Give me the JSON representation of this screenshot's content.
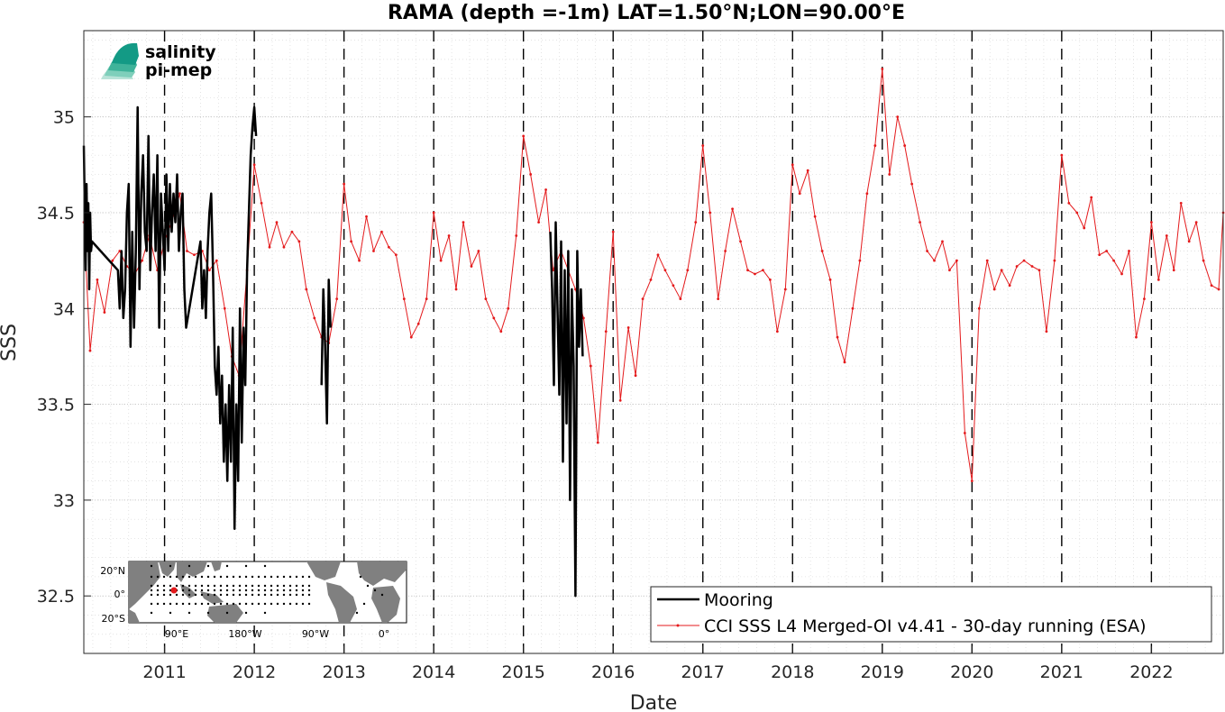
{
  "chart_data": {
    "type": "line",
    "title": "RAMA (depth =-1m) LAT=1.50°N;LON=90.00°E",
    "xlabel": "Date",
    "ylabel": "SSS",
    "xlim": [
      2010.1,
      2022.8
    ],
    "ylim": [
      32.2,
      35.45
    ],
    "xticks": [
      2011,
      2012,
      2013,
      2014,
      2015,
      2016,
      2017,
      2018,
      2019,
      2020,
      2021,
      2022
    ],
    "xtick_labels": [
      "2011",
      "2012",
      "2013",
      "2014",
      "2015",
      "2016",
      "2017",
      "2018",
      "2019",
      "2020",
      "2021",
      "2022"
    ],
    "yticks": [
      32.5,
      33,
      33.5,
      34,
      34.5,
      35
    ],
    "ytick_labels": [
      "32.5",
      "33",
      "33.5",
      "34",
      "34.5",
      "35"
    ],
    "grid": true,
    "yearly_dashed_lines": true,
    "legend_position": "bottom-right",
    "series": [
      {
        "name": "Mooring",
        "color": "#000000",
        "style": "line",
        "x": [
          2010.1,
          2010.12,
          2010.13,
          2010.14,
          2010.15,
          2010.16,
          2010.17,
          2010.18,
          2010.19,
          2010.48,
          2010.5,
          2010.52,
          2010.54,
          2010.56,
          2010.58,
          2010.6,
          2010.62,
          2010.64,
          2010.66,
          2010.68,
          2010.7,
          2010.72,
          2010.74,
          2010.76,
          2010.78,
          2010.8,
          2010.82,
          2010.84,
          2010.86,
          2010.88,
          2010.9,
          2010.92,
          2010.94,
          2010.96,
          2010.98,
          2011.0,
          2011.02,
          2011.04,
          2011.06,
          2011.08,
          2011.1,
          2011.12,
          2011.14,
          2011.16,
          2011.18,
          2011.2,
          2011.22,
          2011.24,
          2011.4,
          2011.42,
          2011.44,
          2011.46,
          2011.48,
          2011.5,
          2011.52,
          2011.54,
          2011.56,
          2011.58,
          2011.6,
          2011.62,
          2011.64,
          2011.66,
          2011.68,
          2011.7,
          2011.72,
          2011.74,
          2011.76,
          2011.78,
          2011.8,
          2011.82,
          2011.84,
          2011.86,
          2011.88,
          2011.9,
          2011.92,
          2011.94,
          2011.96,
          2011.98,
          2012.0,
          2012.02,
          null,
          2012.75,
          2012.77,
          2012.79,
          2012.81,
          2012.83,
          2012.85,
          null,
          2015.3,
          2015.32,
          2015.34,
          2015.36,
          2015.38,
          2015.4,
          2015.42,
          2015.44,
          2015.46,
          2015.48,
          2015.5,
          2015.52,
          2015.54,
          2015.56,
          2015.58,
          2015.6,
          2015.62,
          2015.64,
          2015.66
        ],
        "y": [
          34.85,
          34.2,
          34.65,
          34.3,
          34.55,
          34.1,
          34.5,
          34.3,
          34.35,
          34.2,
          34.0,
          34.3,
          33.95,
          34.1,
          34.5,
          34.65,
          33.8,
          34.4,
          33.9,
          34.3,
          35.05,
          34.1,
          34.6,
          34.8,
          34.4,
          34.3,
          34.9,
          34.2,
          34.5,
          34.7,
          34.3,
          34.8,
          33.9,
          34.6,
          34.4,
          34.2,
          34.7,
          34.3,
          34.65,
          34.4,
          34.6,
          34.45,
          34.7,
          34.3,
          34.5,
          34.6,
          34.1,
          33.9,
          34.35,
          34.0,
          34.2,
          33.95,
          34.3,
          34.5,
          34.6,
          34.2,
          33.7,
          33.55,
          33.8,
          33.4,
          33.65,
          33.2,
          33.5,
          33.1,
          33.6,
          33.2,
          33.9,
          32.85,
          33.5,
          33.1,
          34.0,
          33.3,
          33.9,
          33.6,
          34.2,
          34.5,
          34.8,
          34.95,
          35.05,
          34.9,
          null,
          33.6,
          34.1,
          33.8,
          33.4,
          34.15,
          33.9,
          null,
          34.4,
          34.1,
          33.6,
          34.45,
          34.0,
          33.55,
          34.35,
          33.2,
          34.2,
          33.4,
          34.3,
          33.0,
          34.1,
          33.7,
          32.5,
          34.3,
          33.8,
          34.1,
          33.75
        ]
      },
      {
        "name": "CCI SSS L4 Merged-OI v4.41 - 30-day running (ESA)",
        "color": "#e41a1c",
        "style": "line+dot",
        "x": [
          2010.1,
          2010.17,
          2010.25,
          2010.33,
          2010.42,
          2010.5,
          2010.58,
          2010.67,
          2010.75,
          2010.83,
          2010.92,
          2011.0,
          2011.08,
          2011.17,
          2011.25,
          2011.33,
          2011.42,
          2011.5,
          2011.58,
          2011.67,
          2011.75,
          2011.83,
          2011.92,
          2012.0,
          2012.08,
          2012.17,
          2012.25,
          2012.33,
          2012.42,
          2012.5,
          2012.58,
          2012.67,
          2012.75,
          2012.83,
          2012.92,
          2013.0,
          2013.08,
          2013.17,
          2013.25,
          2013.33,
          2013.42,
          2013.5,
          2013.58,
          2013.67,
          2013.75,
          2013.83,
          2013.92,
          2014.0,
          2014.08,
          2014.17,
          2014.25,
          2014.33,
          2014.42,
          2014.5,
          2014.58,
          2014.67,
          2014.75,
          2014.83,
          2014.92,
          2015.0,
          2015.08,
          2015.17,
          2015.25,
          2015.33,
          2015.42,
          2015.5,
          2015.58,
          2015.67,
          2015.75,
          2015.83,
          2015.92,
          2016.0,
          2016.08,
          2016.17,
          2016.25,
          2016.33,
          2016.42,
          2016.5,
          2016.58,
          2016.67,
          2016.75,
          2016.83,
          2016.92,
          2017.0,
          2017.08,
          2017.17,
          2017.25,
          2017.33,
          2017.42,
          2017.5,
          2017.58,
          2017.67,
          2017.75,
          2017.83,
          2017.92,
          2018.0,
          2018.08,
          2018.17,
          2018.25,
          2018.33,
          2018.42,
          2018.5,
          2018.58,
          2018.67,
          2018.75,
          2018.83,
          2018.92,
          2019.0,
          2019.08,
          2019.17,
          2019.25,
          2019.33,
          2019.42,
          2019.5,
          2019.58,
          2019.67,
          2019.75,
          2019.83,
          2019.92,
          2020.0,
          2020.08,
          2020.17,
          2020.25,
          2020.33,
          2020.42,
          2020.5,
          2020.58,
          2020.67,
          2020.75,
          2020.83,
          2020.92,
          2021.0,
          2021.08,
          2021.17,
          2021.25,
          2021.33,
          2021.42,
          2021.5,
          2021.58,
          2021.67,
          2021.75,
          2021.83,
          2021.92,
          2022.0,
          2022.08,
          2022.17,
          2022.25,
          2022.33,
          2022.42,
          2022.5,
          2022.58,
          2022.67,
          2022.75,
          2022.8
        ],
        "y": [
          34.45,
          33.78,
          34.15,
          33.98,
          34.25,
          34.3,
          34.22,
          34.18,
          34.25,
          34.38,
          34.2,
          34.35,
          34.45,
          34.6,
          34.3,
          34.28,
          34.3,
          34.2,
          34.25,
          34.0,
          33.75,
          33.65,
          34.2,
          34.75,
          34.55,
          34.32,
          34.45,
          34.32,
          34.4,
          34.35,
          34.1,
          33.95,
          33.85,
          33.82,
          34.05,
          34.65,
          34.35,
          34.25,
          34.48,
          34.3,
          34.4,
          34.32,
          34.28,
          34.05,
          33.85,
          33.92,
          34.05,
          34.5,
          34.25,
          34.38,
          34.1,
          34.45,
          34.22,
          34.3,
          34.05,
          33.95,
          33.88,
          34.0,
          34.38,
          34.9,
          34.7,
          34.45,
          34.62,
          34.2,
          34.3,
          34.2,
          34.1,
          33.95,
          33.7,
          33.3,
          33.88,
          34.4,
          33.52,
          33.9,
          33.65,
          34.05,
          34.15,
          34.28,
          34.2,
          34.12,
          34.05,
          34.2,
          34.45,
          34.85,
          34.5,
          34.05,
          34.3,
          34.52,
          34.35,
          34.2,
          34.18,
          34.2,
          34.15,
          33.88,
          34.1,
          34.75,
          34.6,
          34.72,
          34.48,
          34.3,
          34.15,
          33.85,
          33.72,
          34.0,
          34.25,
          34.6,
          34.85,
          35.25,
          34.7,
          35.0,
          34.85,
          34.65,
          34.45,
          34.3,
          34.25,
          34.35,
          34.2,
          34.25,
          33.35,
          33.1,
          34.0,
          34.25,
          34.1,
          34.2,
          34.12,
          34.22,
          34.25,
          34.22,
          34.2,
          33.88,
          34.25,
          34.8,
          34.55,
          34.5,
          34.42,
          34.58,
          34.28,
          34.3,
          34.25,
          34.18,
          34.3,
          33.85,
          34.05,
          34.45,
          34.15,
          34.38,
          34.2,
          34.55,
          34.35,
          34.45,
          34.25,
          34.12,
          34.1,
          34.5
        ]
      }
    ]
  },
  "inset_map": {
    "ylabels": [
      "20°N",
      "0°",
      "20°S"
    ],
    "xlabels": [
      "90°E",
      "180°W",
      "90°W",
      "0°"
    ],
    "land_color": "#808080",
    "marker_color": "#e41a1c"
  },
  "logo": {
    "line1": "salinity",
    "line2": "pi-mep",
    "color1": "#1aa38f",
    "color2": "#0d5c55"
  }
}
